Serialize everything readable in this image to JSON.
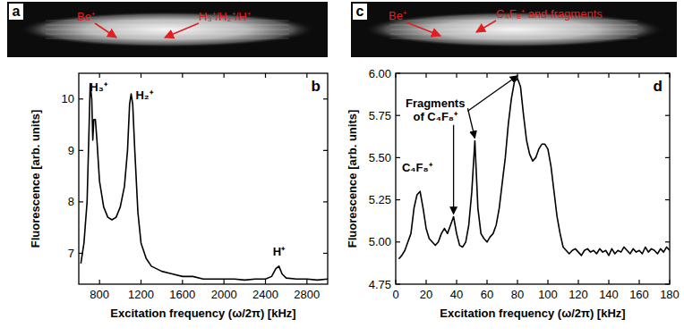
{
  "images": [
    {
      "panel": "a",
      "labels": [
        "Be⁺",
        "H₃⁺/H₂⁺/H⁺"
      ]
    },
    {
      "panel": "c",
      "labels": [
        "Be⁺",
        "C₄F₈⁺ and fragments"
      ]
    }
  ],
  "chart_data": [
    {
      "type": "line",
      "panel": "b",
      "color": "#000000",
      "grid": false,
      "x_label": "Excitation frequency (ω/2π) [kHz]",
      "y_label": "Fluorescence [arb. units]",
      "xlim": [
        600,
        3000
      ],
      "xticks": [
        800,
        1200,
        1600,
        2000,
        2400,
        2800
      ],
      "ylim": [
        6.4,
        10.5
      ],
      "yticks": [
        7,
        8,
        9,
        10
      ],
      "x": [
        620,
        650,
        680,
        700,
        710,
        725,
        735,
        745,
        760,
        775,
        800,
        840,
        880,
        920,
        960,
        1000,
        1040,
        1070,
        1090,
        1105,
        1120,
        1140,
        1170,
        1200,
        1250,
        1300,
        1400,
        1500,
        1600,
        1700,
        1800,
        1900,
        2000,
        2100,
        2200,
        2300,
        2400,
        2460,
        2500,
        2530,
        2560,
        2600,
        2700,
        2800,
        2900,
        3000
      ],
      "values": [
        6.8,
        7.2,
        8.0,
        9.5,
        10.3,
        10.0,
        9.2,
        9.6,
        9.6,
        9.2,
        8.4,
        7.9,
        7.7,
        7.65,
        7.7,
        7.9,
        8.3,
        9.0,
        9.9,
        10.1,
        9.9,
        9.0,
        7.8,
        7.2,
        6.9,
        6.75,
        6.65,
        6.6,
        6.55,
        6.55,
        6.5,
        6.5,
        6.5,
        6.5,
        6.48,
        6.5,
        6.5,
        6.55,
        6.7,
        6.75,
        6.6,
        6.52,
        6.5,
        6.5,
        6.48,
        6.5
      ],
      "annotations": [
        {
          "text": "H₃⁺",
          "x": 790,
          "y": 10.15
        },
        {
          "text": "H₂⁺",
          "x": 1230,
          "y": 10.0
        },
        {
          "text": "H⁺",
          "x": 2530,
          "y": 6.95
        }
      ]
    },
    {
      "type": "line",
      "panel": "d",
      "color": "#000000",
      "grid": false,
      "x_label": "Excitation frequency (ω/2π) [kHz]",
      "y_label": "Fluorescence [arb. units]",
      "xlim": [
        0,
        180
      ],
      "xticks": [
        0,
        20,
        40,
        60,
        80,
        100,
        120,
        140,
        160,
        180
      ],
      "ylim": [
        4.75,
        6.0
      ],
      "yticks": [
        4.75,
        {
          "value": 5,
          "label": "5.00"
        },
        5.25,
        {
          "value": 5.5,
          "label": "5.50"
        },
        5.75,
        {
          "value": 6,
          "label": "6.00"
        }
      ],
      "x": [
        2,
        4,
        6,
        8,
        10,
        12,
        14,
        16,
        18,
        20,
        22,
        24,
        26,
        28,
        30,
        32,
        34,
        36,
        38,
        40,
        42,
        44,
        46,
        48,
        50,
        52,
        54,
        56,
        58,
        60,
        62,
        64,
        66,
        68,
        70,
        72,
        74,
        76,
        78,
        80,
        82,
        84,
        86,
        88,
        90,
        92,
        94,
        96,
        98,
        100,
        102,
        104,
        106,
        108,
        110,
        112,
        114,
        116,
        118,
        120,
        122,
        124,
        126,
        128,
        130,
        132,
        134,
        136,
        138,
        140,
        142,
        144,
        146,
        148,
        150,
        152,
        154,
        156,
        158,
        160,
        162,
        164,
        166,
        168,
        170,
        172,
        174,
        176,
        178,
        180
      ],
      "values": [
        4.9,
        4.92,
        4.95,
        5.0,
        5.05,
        5.2,
        5.28,
        5.3,
        5.2,
        5.08,
        5.02,
        5.0,
        4.98,
        5.0,
        5.05,
        5.08,
        5.05,
        5.1,
        5.15,
        5.05,
        4.98,
        4.97,
        5.0,
        5.1,
        5.3,
        5.6,
        5.2,
        5.05,
        5.02,
        5.0,
        5.03,
        5.05,
        5.1,
        5.2,
        5.35,
        5.5,
        5.7,
        5.85,
        5.95,
        5.97,
        5.92,
        5.75,
        5.6,
        5.52,
        5.48,
        5.5,
        5.55,
        5.58,
        5.58,
        5.55,
        5.45,
        5.3,
        5.15,
        5.05,
        4.97,
        4.95,
        4.93,
        4.95,
        4.96,
        4.94,
        4.92,
        4.95,
        4.96,
        4.94,
        4.95,
        4.93,
        4.96,
        4.94,
        4.95,
        4.92,
        4.96,
        4.93,
        4.95,
        4.94,
        4.97,
        4.95,
        4.93,
        4.96,
        4.94,
        4.95,
        4.93,
        4.97,
        4.94,
        4.96,
        4.95,
        4.93,
        4.96,
        4.94,
        4.97,
        4.95
      ],
      "annotations": [
        {
          "text": "C₄F₈⁺",
          "x": 14,
          "y": 5.42
        },
        {
          "text": "Fragments of C₄F₈⁺",
          "x": 26,
          "y": 5.8,
          "arrows": [
            [
              38,
              5.15
            ],
            [
              52,
              5.6
            ],
            [
              80,
              5.97
            ]
          ]
        }
      ]
    }
  ]
}
